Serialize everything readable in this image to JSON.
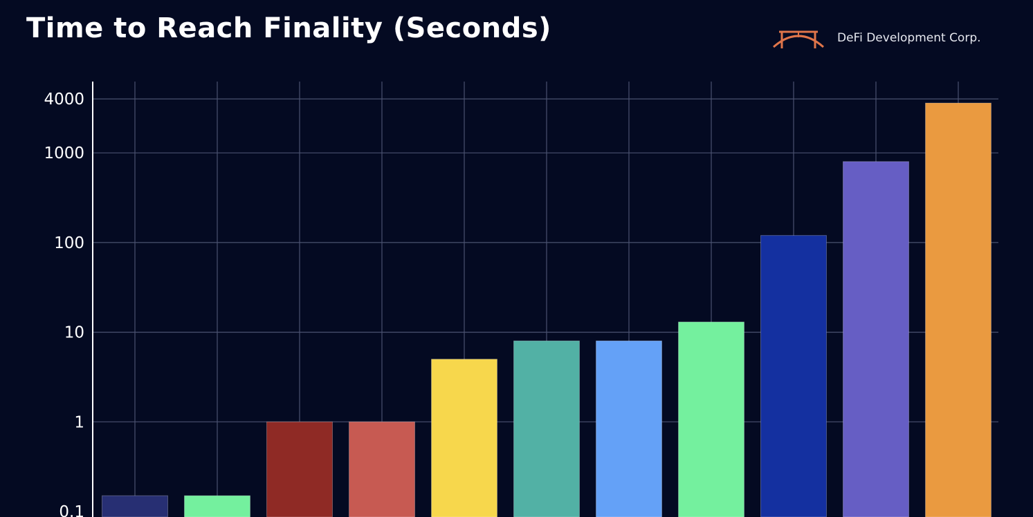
{
  "header": {
    "title": "Time to Reach Finality (Seconds)",
    "brand_name": "DeFi Development Corp.",
    "brand_logo_icon": "bridge-arch-logo-icon",
    "brand_color": "#e0754a"
  },
  "colors": {
    "background": "#040a22",
    "grid": "#4a5270",
    "axis": "#ffffff",
    "text": "#ffffff"
  },
  "chart_data": {
    "type": "bar",
    "title": "Time to Reach Finality (Seconds)",
    "xlabel": "",
    "ylabel": "",
    "yscale": "log",
    "ylim": [
      0.1,
      4000
    ],
    "yticks": [
      0.1,
      1,
      10,
      100,
      1000,
      4000
    ],
    "ytick_labels": [
      "0.1",
      "1",
      "10",
      "100",
      "1000",
      "4000"
    ],
    "grid": true,
    "legend": "none",
    "values": [
      0.15,
      0.15,
      1,
      1,
      5,
      8,
      8,
      13,
      120,
      800,
      3600
    ],
    "colors": [
      "#272f73",
      "#74f09e",
      "#8f2a25",
      "#c75a52",
      "#f7d74c",
      "#52b1a5",
      "#64a1f7",
      "#74f09e",
      "#1430a0",
      "#665ec4",
      "#ea9a40"
    ]
  }
}
